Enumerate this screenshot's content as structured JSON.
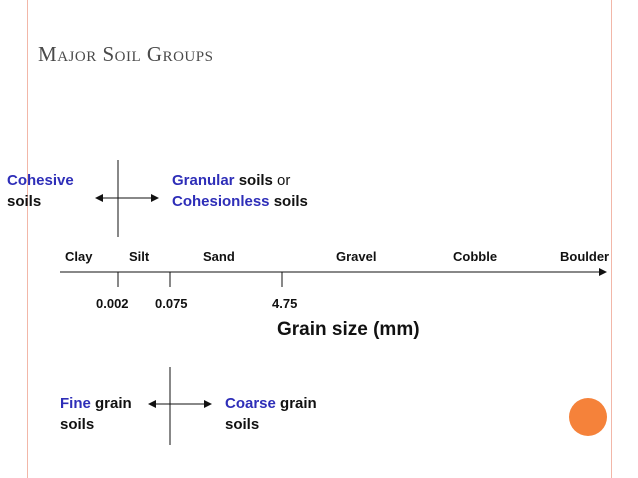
{
  "slide": {
    "title_words": [
      {
        "cap": "M",
        "rest": "AJOR"
      },
      {
        "cap": "S",
        "rest": "OIL"
      },
      {
        "cap": "G",
        "rest": "ROUPS"
      }
    ],
    "cohesive": {
      "line1": "Cohesive",
      "line2": "soils"
    },
    "granular": {
      "word1": "Granular",
      "word2": " soils",
      "word3": " or",
      "line2_blue": "Cohesionless",
      "line2_rest": " soils"
    },
    "categories": [
      "Clay",
      "Silt",
      "Sand",
      "Gravel",
      "Cobble",
      "Boulder"
    ],
    "ticks": [
      "0.002",
      "0.075",
      "4.75"
    ],
    "axis_title": "Grain size (mm)",
    "fine": {
      "blue": "Fine",
      "rest": " grain",
      "line2": "soils"
    },
    "coarse": {
      "blue": "Coarse",
      "rest": " grain",
      "line2": "soils"
    },
    "accent_color": "#f5823a",
    "highlight_color": "#2e2eb8"
  }
}
